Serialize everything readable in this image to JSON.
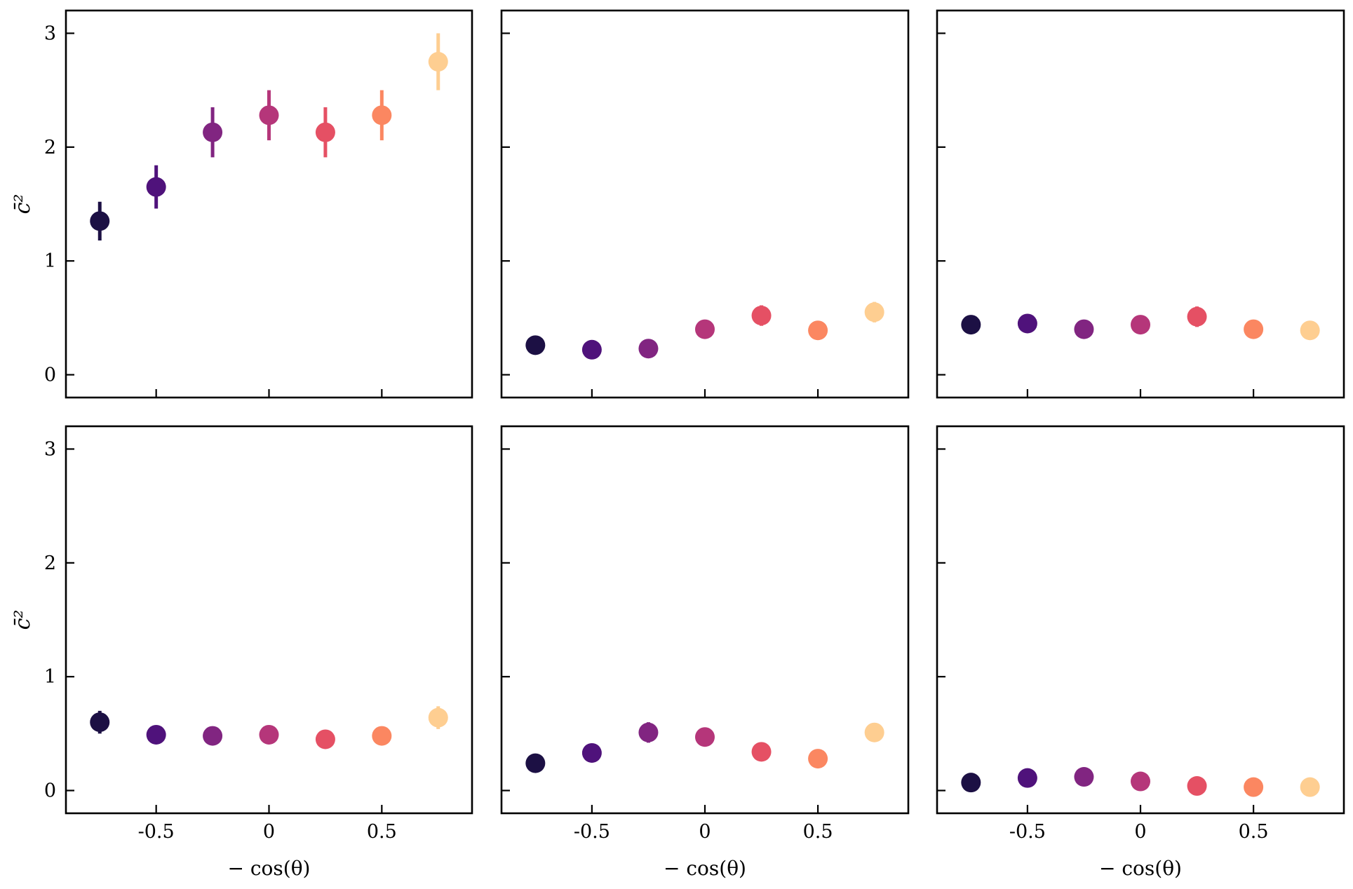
{
  "chart_data": {
    "type": "scatter",
    "layout": "2x3 grid",
    "shared_x": true,
    "shared_y": true,
    "xlabel": "− cos(θ)",
    "ylabel": "c̄²",
    "xlim": [
      -0.9,
      0.9
    ],
    "ylim": [
      -0.2,
      3.2
    ],
    "xticks": [
      -0.5,
      0,
      0.5
    ],
    "xtick_labels": [
      "-0.5",
      "0",
      "0.5"
    ],
    "yticks": [
      0,
      1,
      2,
      3
    ],
    "ytick_labels": [
      "0",
      "1",
      "2",
      "3"
    ],
    "x": [
      -0.75,
      -0.5,
      -0.25,
      0,
      0.25,
      0.5,
      0.75
    ],
    "colors": [
      "#1c1044",
      "#4f127b",
      "#812581",
      "#b5367a",
      "#e55064",
      "#fb8761",
      "#fece91"
    ],
    "panels": [
      {
        "name": "panel-1",
        "row": 0,
        "col": 0,
        "y": [
          1.35,
          1.65,
          2.13,
          2.28,
          2.13,
          2.28,
          2.75
        ],
        "err": [
          0.17,
          0.19,
          0.22,
          0.22,
          0.22,
          0.22,
          0.25
        ]
      },
      {
        "name": "panel-2",
        "row": 0,
        "col": 1,
        "y": [
          0.26,
          0.22,
          0.23,
          0.4,
          0.52,
          0.39,
          0.55
        ],
        "err": [
          0.03,
          0.03,
          0.04,
          0.06,
          0.09,
          0.06,
          0.09
        ]
      },
      {
        "name": "panel-3",
        "row": 0,
        "col": 2,
        "y": [
          0.44,
          0.45,
          0.4,
          0.44,
          0.51,
          0.4,
          0.39
        ],
        "err": [
          0.08,
          0.08,
          0.07,
          0.08,
          0.09,
          0.07,
          0.06
        ]
      },
      {
        "name": "panel-4",
        "row": 1,
        "col": 0,
        "y": [
          0.6,
          0.49,
          0.48,
          0.49,
          0.45,
          0.48,
          0.64
        ],
        "err": [
          0.1,
          0.08,
          0.08,
          0.08,
          0.08,
          0.08,
          0.1
        ]
      },
      {
        "name": "panel-5",
        "row": 1,
        "col": 1,
        "y": [
          0.24,
          0.33,
          0.51,
          0.47,
          0.34,
          0.28,
          0.51
        ],
        "err": [
          0.03,
          0.04,
          0.09,
          0.08,
          0.05,
          0.04,
          0.08
        ]
      },
      {
        "name": "panel-6",
        "row": 1,
        "col": 2,
        "y": [
          0.07,
          0.11,
          0.12,
          0.08,
          0.04,
          0.03,
          0.03
        ],
        "err": [
          0.01,
          0.01,
          0.02,
          0.01,
          0.01,
          0.01,
          0.01
        ]
      }
    ]
  }
}
